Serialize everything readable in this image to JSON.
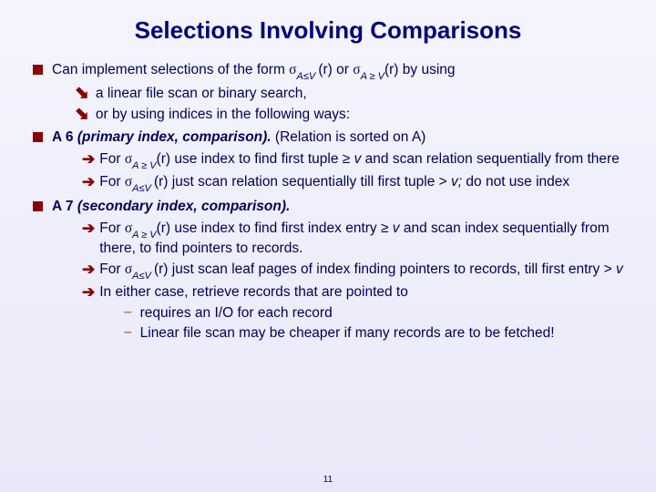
{
  "title": "Selections Involving Comparisons",
  "line1_a": "Can implement selections of the form ",
  "line1_sigma1": "σ",
  "line1_sub1": "A≤V ",
  "line1_b": "(r) or ",
  "line1_sigma2": "σ",
  "line1_sub2": "A ≥ V",
  "line1_c": "(r) by using",
  "sub1": "a linear file scan or binary search,",
  "sub2": "or by using indices in the following ways:",
  "a6_a": "A 6 ",
  "a6_b": "(primary index, comparison). ",
  "a6_c": "(Relation is sorted on A)",
  "a6_r1a": "For ",
  "a6_r1_sigma": "σ",
  "a6_r1_sub": "A ≥ V",
  "a6_r1b": "(r)  use index to find first tuple ≥ ",
  "a6_r1_v": "v  ",
  "a6_r1c": "and scan relation sequentially  from there",
  "a6_r2a": "For ",
  "a6_r2_sigma": "σ",
  "a6_r2_sub": "A≤V ",
  "a6_r2b": "(r) just scan relation sequentially till first tuple > ",
  "a6_r2_v": "v; ",
  "a6_r2c": "do not use index",
  "a7_a": "A 7 ",
  "a7_b": "(secondary index, comparison).",
  "a7_r1a": "For ",
  "a7_r1_sigma": "σ",
  "a7_r1_sub": "A ≥ V",
  "a7_r1b": "(r)  use index to find first index entry ≥ ",
  "a7_r1_v": "v ",
  "a7_r1c": "and scan index sequentially  from there, to find pointers to records.",
  "a7_r2a": "For ",
  "a7_r2_sigma": "σ",
  "a7_r2_sub": "A≤V ",
  "a7_r2b": "(r) just scan leaf pages of index finding pointers to records, till first entry > ",
  "a7_r2_v": "v",
  "a7_r3": "In either case, retrieve records that are pointed to",
  "dash1": "requires an I/O for each record",
  "dash2": "Linear file scan may be cheaper if many records are to be fetched!",
  "slidenum": "11",
  "colors": {
    "bullet": "#8b0000",
    "text": "#000060",
    "dash": "#c08040",
    "bg_top": "#f5f5ff",
    "bg_bottom": "#e8e8f8"
  }
}
